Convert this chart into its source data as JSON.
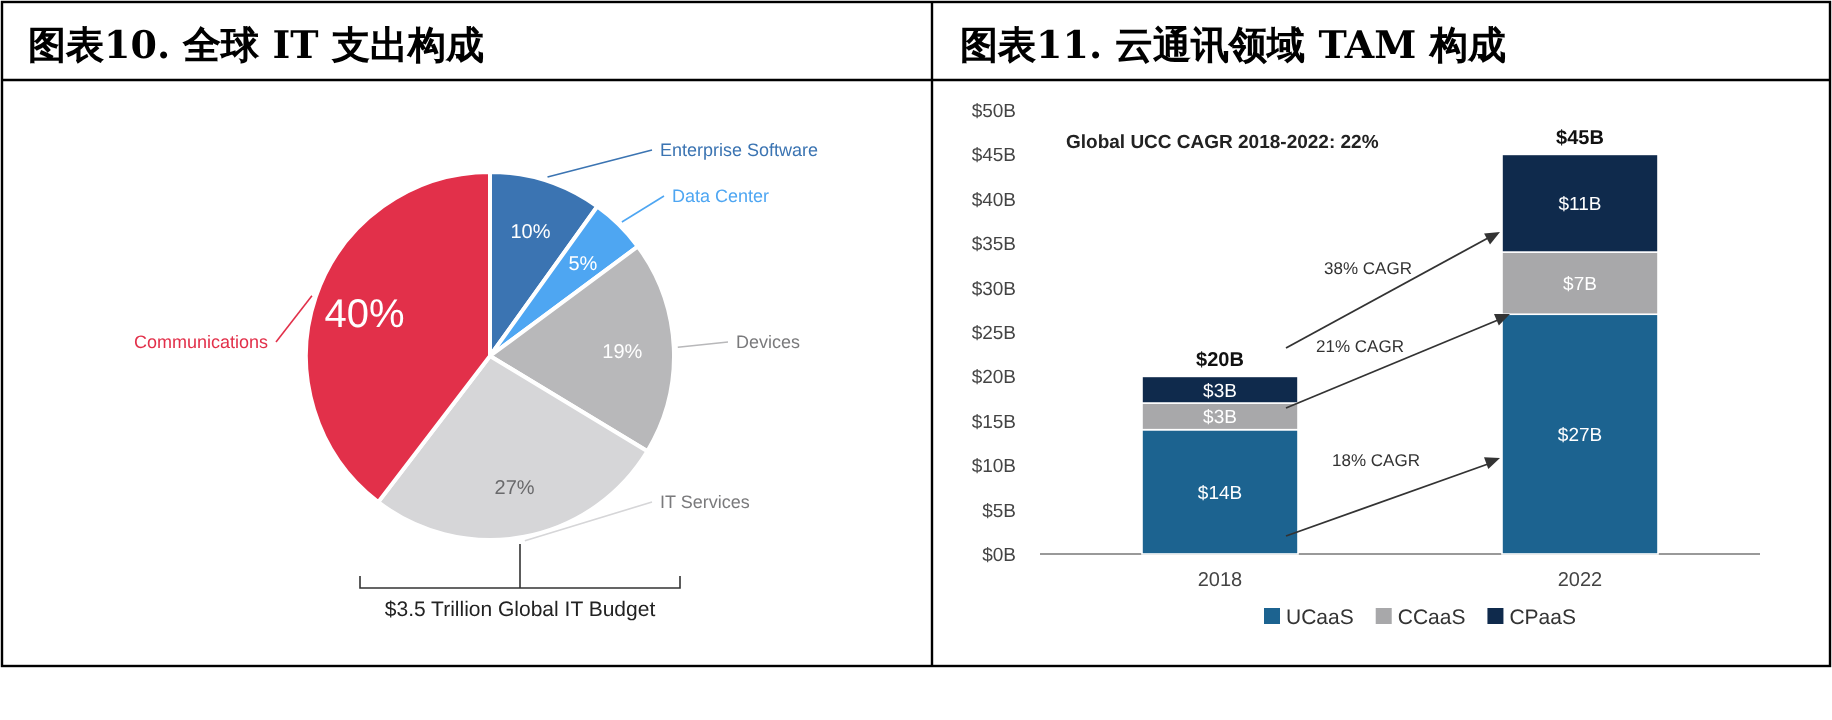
{
  "chart_data": [
    {
      "type": "pie",
      "title": "图表10. 全球 IT 支出构成",
      "categories": [
        "Enterprise Software",
        "Data Center",
        "Devices",
        "IT Services",
        "Communications"
      ],
      "values": [
        10,
        5,
        19,
        27,
        40
      ],
      "value_labels": [
        "10%",
        "5%",
        "19%",
        "27%",
        "40%"
      ],
      "colors": [
        "#3b74b2",
        "#4ea6f2",
        "#b8b8ba",
        "#d6d6d8",
        "#e2304a"
      ],
      "annotations": [
        "$3.5 Trillion Global IT Budget"
      ]
    },
    {
      "type": "bar",
      "title": "图表11. 云通讯领域 TAM 构成",
      "stacked": true,
      "categories": [
        "2018",
        "2022"
      ],
      "series": [
        {
          "name": "UCaaS",
          "color": "#1c6390",
          "values": [
            14,
            27
          ],
          "value_labels": [
            "$14B",
            "$27B"
          ]
        },
        {
          "name": "CCaaS",
          "color": "#a8a8aa",
          "values": [
            3,
            7
          ],
          "value_labels": [
            "$3B",
            "$7B"
          ]
        },
        {
          "name": "CPaaS",
          "color": "#0f2a4c",
          "values": [
            3,
            11
          ],
          "value_labels": [
            "$3B",
            "$11B"
          ]
        }
      ],
      "totals": [
        "$20B",
        "$45B"
      ],
      "ylim": [
        0,
        50
      ],
      "yticks": [
        {
          "value": 0,
          "label": "$0B"
        },
        {
          "value": 5,
          "label": "$5B"
        },
        {
          "value": 10,
          "label": "$10B"
        },
        {
          "value": 15,
          "label": "$15B"
        },
        {
          "value": 20,
          "label": "$20B"
        },
        {
          "value": 25,
          "label": "$25B"
        },
        {
          "value": 30,
          "label": "$30B"
        },
        {
          "value": 35,
          "label": "$35B"
        },
        {
          "value": 40,
          "label": "$40B"
        },
        {
          "value": 45,
          "label": "$45B"
        },
        {
          "value": 50,
          "label": "$50B"
        }
      ],
      "legend": "bottom",
      "annotations": [
        "Global UCC CAGR 2018-2022: 22%",
        "38% CAGR",
        "21% CAGR",
        "18% CAGR"
      ]
    }
  ]
}
